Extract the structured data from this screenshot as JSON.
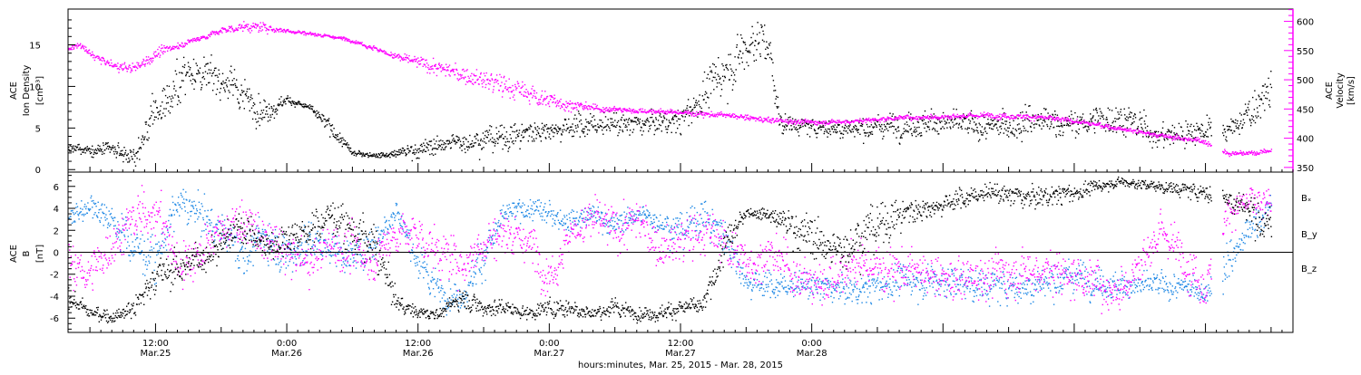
{
  "colors": {
    "axis": "#000000",
    "density": "#000000",
    "velocity": "#ff00ff",
    "bx": "#000000",
    "by": "#1e88e5",
    "bz": "#ff00ff"
  },
  "chart_data": [
    {
      "type": "scatter",
      "panel": "top",
      "x_unit": "hours from Mar. 25, 2015 00:00",
      "xlim": [
        4,
        116
      ],
      "left_axis": {
        "label_lines": [
          "ACE",
          "Ion Density",
          "[cm⁻³]"
        ],
        "ylim": [
          -0.3,
          19.3
        ],
        "ticks": [
          0,
          5,
          10,
          15
        ]
      },
      "right_axis": {
        "label_lines": [
          "ACE",
          "Velocity",
          "[km/s]"
        ],
        "ylim": [
          342,
          621
        ],
        "ticks": [
          350,
          400,
          450,
          500,
          550,
          600
        ]
      },
      "series": [
        {
          "key": "density",
          "axis": "left",
          "color": "#000000",
          "x": [
            4,
            6,
            8,
            9,
            10,
            12,
            14,
            15,
            16,
            18,
            20,
            21,
            22,
            24,
            26,
            28,
            30,
            33,
            36,
            40,
            44,
            48,
            52,
            56,
            60,
            64,
            67,
            68,
            69,
            70,
            72,
            76,
            80,
            84,
            88,
            92,
            96,
            100,
            104,
            108,
            110,
            112,
            114
          ],
          "y": [
            2.5,
            2.5,
            2.3,
            2.0,
            1.5,
            7.0,
            10.0,
            12.5,
            11.5,
            11.0,
            9.0,
            8.0,
            7.0,
            8.5,
            7.5,
            5.0,
            2.0,
            1.8,
            2.5,
            3.5,
            4.0,
            5.0,
            5.5,
            5.5,
            6.0,
            12.0,
            16.0,
            15.0,
            6.0,
            5.5,
            5.2,
            5.0,
            5.5,
            5.8,
            5.0,
            6.0,
            5.5,
            6.5,
            4.0,
            5.0,
            4.5,
            7.0,
            9.5
          ],
          "spread": [
            0.6,
            0.6,
            0.8,
            1.0,
            1.0,
            2.5,
            3.0,
            2.5,
            2.0,
            2.0,
            2.0,
            2.0,
            1.5,
            0.4,
            0.4,
            1.0,
            0.3,
            0.3,
            1.0,
            1.2,
            1.5,
            1.5,
            1.5,
            1.2,
            1.5,
            3.0,
            2.5,
            2.5,
            1.5,
            1.0,
            1.0,
            1.2,
            1.5,
            1.5,
            1.5,
            2.0,
            1.5,
            2.0,
            1.5,
            1.5,
            1.5,
            2.0,
            2.5
          ]
        },
        {
          "key": "velocity",
          "axis": "right",
          "color": "#ff00ff",
          "x": [
            4,
            5,
            6,
            8,
            10,
            12,
            14,
            16,
            18,
            20,
            22,
            24,
            26,
            28,
            30,
            32,
            34,
            36,
            40,
            44,
            48,
            52,
            56,
            60,
            64,
            68,
            72,
            76,
            80,
            84,
            88,
            92,
            96,
            100,
            104,
            108,
            109,
            110,
            112,
            114
          ],
          "y": [
            555,
            560,
            545,
            525,
            520,
            545,
            560,
            572,
            585,
            592,
            590,
            585,
            580,
            575,
            568,
            555,
            540,
            530,
            510,
            490,
            465,
            452,
            448,
            445,
            440,
            432,
            428,
            430,
            436,
            438,
            440,
            438,
            430,
            418,
            405,
            395,
            385,
            375,
            375,
            380
          ],
          "spread": [
            4,
            5,
            6,
            8,
            10,
            8,
            6,
            5,
            6,
            8,
            8,
            4,
            3,
            3,
            3,
            5,
            6,
            10,
            15,
            18,
            15,
            6,
            4,
            4,
            5,
            5,
            4,
            4,
            4,
            5,
            5,
            5,
            4,
            4,
            4,
            5,
            5,
            4,
            4,
            4
          ]
        }
      ],
      "gaps": [
        [
          108.5,
          109.5
        ]
      ]
    },
    {
      "type": "scatter",
      "panel": "bottom",
      "x_unit": "hours from Mar. 25, 2015 00:00",
      "xlim": [
        4,
        116
      ],
      "ylabel_lines": [
        "ACE",
        "B",
        "[nT]"
      ],
      "ylim": [
        -7.3,
        7.3
      ],
      "ticks": [
        -6,
        -4,
        -2,
        0,
        2,
        4,
        6
      ],
      "zero_line": true,
      "legend": [
        "Bₓ",
        "B_y",
        "B_z"
      ],
      "legend_position": "right",
      "series": [
        {
          "key": "bx",
          "name": "Bₓ",
          "color": "#000000",
          "x": [
            4,
            6,
            8,
            10,
            12,
            14,
            16,
            18,
            20,
            22,
            24,
            26,
            28,
            30,
            32,
            34,
            36,
            38,
            40,
            42,
            44,
            46,
            48,
            50,
            52,
            54,
            56,
            58,
            60,
            62,
            64,
            66,
            68,
            70,
            72,
            74,
            76,
            78,
            80,
            84,
            88,
            92,
            96,
            100,
            104,
            108,
            110,
            112,
            114
          ],
          "y": [
            -4,
            -5.5,
            -5.8,
            -5,
            -2,
            -1.5,
            -0.5,
            1,
            2.5,
            0.5,
            1.5,
            2,
            3.5,
            2,
            0.5,
            -4.5,
            -5.5,
            -5.5,
            -4,
            -5,
            -5,
            -5.5,
            -5,
            -5,
            -5.5,
            -5,
            -5.5,
            -5.5,
            -5,
            -5,
            0.5,
            3.8,
            3.5,
            2.5,
            1.5,
            0,
            1.5,
            2.5,
            3.5,
            4.5,
            5.5,
            5,
            5.5,
            6.5,
            6,
            5.5,
            5,
            4,
            2
          ],
          "spread": [
            1,
            0.6,
            0.6,
            1,
            1.5,
            1.5,
            1.5,
            1.5,
            1.5,
            1.5,
            1.5,
            1.5,
            1.5,
            2,
            2,
            0.8,
            0.5,
            0.5,
            1,
            0.8,
            0.8,
            0.6,
            0.8,
            0.8,
            0.6,
            0.8,
            0.6,
            0.6,
            0.8,
            0.8,
            1.5,
            0.4,
            0.6,
            1.5,
            2,
            2,
            2,
            2,
            1.5,
            1,
            0.8,
            1,
            0.8,
            0.4,
            0.5,
            0.8,
            1,
            1.5,
            2
          ]
        },
        {
          "key": "by",
          "name": "B_y",
          "color": "#1e88e5",
          "x": [
            4,
            6,
            8,
            10,
            12,
            14,
            16,
            18,
            20,
            22,
            24,
            26,
            28,
            30,
            32,
            34,
            36,
            38,
            40,
            42,
            44,
            46,
            48,
            50,
            52,
            54,
            56,
            58,
            60,
            62,
            64,
            66,
            68,
            72,
            76,
            80,
            84,
            88,
            92,
            96,
            100,
            104,
            108,
            110,
            112,
            114
          ],
          "y": [
            3,
            4.5,
            3,
            0.5,
            -0.5,
            4.5,
            3.5,
            2,
            0,
            1.5,
            0,
            1,
            0.5,
            -0.5,
            1,
            4,
            -1,
            -3.5,
            -4,
            0,
            3.5,
            4,
            3.5,
            3,
            3.5,
            2.5,
            3.5,
            3,
            2,
            3.5,
            1.5,
            -2.5,
            -3,
            -3,
            -3.5,
            -2.5,
            -2.5,
            -3,
            -3,
            -2,
            -3,
            -3,
            -3.5,
            -1,
            2,
            4.5
          ],
          "spread": [
            1.5,
            1,
            1.5,
            2,
            2,
            1.5,
            1.5,
            1.5,
            2,
            2,
            2,
            2,
            1.5,
            1.5,
            1.5,
            1,
            1.5,
            1.5,
            1,
            2,
            1,
            1,
            1,
            1,
            1,
            1,
            1,
            1,
            1.5,
            1.5,
            2,
            1.5,
            1.2,
            1.2,
            1.2,
            1.5,
            1.5,
            1.5,
            1.5,
            1.5,
            1.2,
            1.2,
            1,
            2,
            1.5,
            1.5
          ]
        },
        {
          "key": "bz",
          "name": "B_z",
          "color": "#ff00ff",
          "x": [
            4,
            6,
            8,
            10,
            12,
            14,
            16,
            18,
            20,
            22,
            24,
            26,
            28,
            30,
            32,
            34,
            36,
            38,
            40,
            42,
            44,
            46,
            48,
            50,
            52,
            54,
            56,
            58,
            60,
            62,
            64,
            66,
            68,
            72,
            76,
            80,
            84,
            88,
            92,
            96,
            100,
            104,
            108,
            110,
            112,
            114
          ],
          "y": [
            -1,
            -2,
            1,
            3,
            4,
            -1,
            0,
            2,
            3,
            1,
            0,
            -1,
            1,
            0,
            -0.5,
            2,
            1.5,
            0,
            -1,
            1,
            2,
            1,
            -2,
            2,
            3,
            2,
            3,
            0.5,
            1,
            2,
            1,
            -1,
            0,
            -3,
            -1,
            -1.5,
            -2.5,
            -2,
            -1.5,
            -2,
            -3.5,
            2,
            -3,
            4,
            4.5,
            4
          ],
          "spread": [
            2,
            2,
            2,
            2,
            2.5,
            2,
            2,
            2,
            2,
            2,
            2,
            2,
            2,
            2,
            2,
            2,
            2,
            2,
            2,
            2,
            2,
            2,
            2,
            2,
            2,
            2,
            2,
            2,
            2,
            2,
            2,
            2,
            2,
            2,
            2,
            2,
            2,
            2,
            2,
            2,
            2,
            2,
            2,
            1.5,
            1.5,
            1.5
          ]
        }
      ],
      "gaps": [
        [
          108.5,
          109.5
        ]
      ]
    }
  ],
  "x_axis": {
    "ticks": [
      {
        "hour": 12,
        "time": "12:00",
        "date": "Mar.25"
      },
      {
        "hour": 24,
        "time": "0:00",
        "date": "Mar.26"
      },
      {
        "hour": 36,
        "time": "12:00",
        "date": "Mar.26"
      },
      {
        "hour": 48,
        "time": "0:00",
        "date": "Mar.27"
      },
      {
        "hour": 60,
        "time": "12:00",
        "date": "Mar.27"
      },
      {
        "hour": 72,
        "time": "0:00",
        "date": "Mar.28"
      }
    ],
    "title": "hours:minutes, Mar. 25, 2015 - Mar. 28, 2015"
  }
}
